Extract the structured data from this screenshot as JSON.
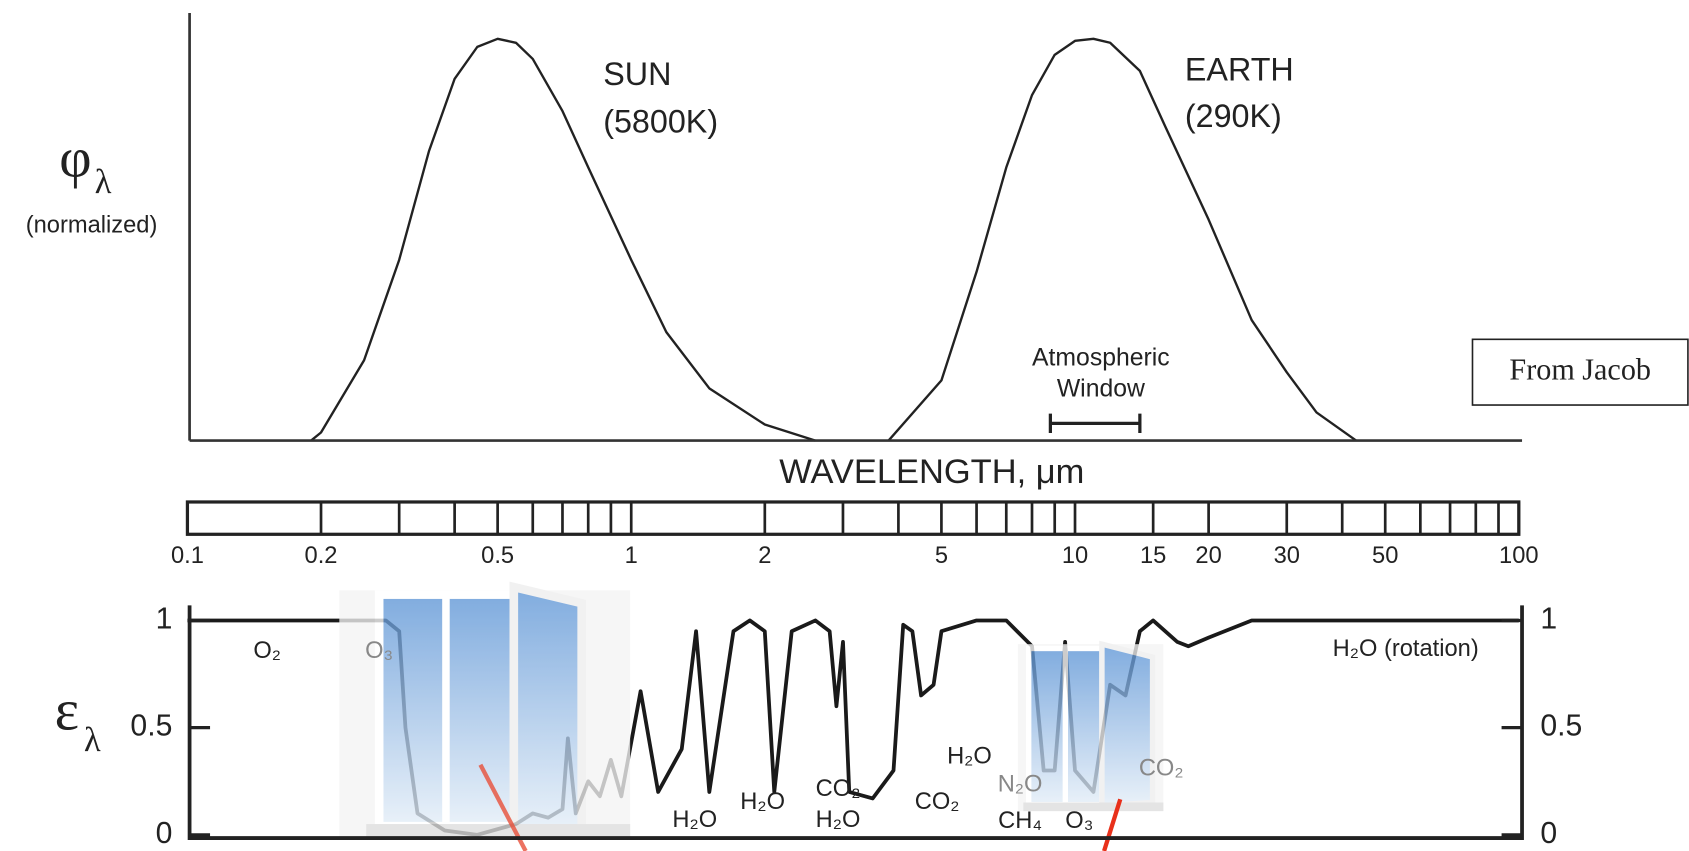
{
  "chart_data": [
    {
      "type": "line",
      "ylabel": {
        "symbol": "φ",
        "subscript": "λ"
      },
      "ylabel_note": "(normalized)",
      "xlabel": "WAVELENGTH, μm",
      "log_x": true,
      "xlim": [
        0.1,
        100
      ],
      "xticks": [
        0.1,
        0.2,
        0.5,
        1,
        2,
        5,
        10,
        15,
        20,
        30,
        50,
        100
      ],
      "xminor": [
        0.3,
        0.4,
        0.6,
        0.7,
        0.8,
        0.9,
        3,
        4,
        6,
        7,
        8,
        9,
        40,
        60,
        70,
        80,
        90
      ],
      "ylim": [
        0,
        1
      ],
      "series": [
        {
          "name": "SUN",
          "subtitle": "(5800K)",
          "color": "#222",
          "x": [
            0.19,
            0.2,
            0.25,
            0.3,
            0.35,
            0.4,
            0.45,
            0.5,
            0.55,
            0.6,
            0.7,
            0.8,
            1.0,
            1.2,
            1.5,
            2.0,
            2.6
          ],
          "values": [
            0,
            0.02,
            0.2,
            0.45,
            0.72,
            0.9,
            0.98,
            1.0,
            0.99,
            0.95,
            0.82,
            0.68,
            0.45,
            0.27,
            0.13,
            0.04,
            0
          ]
        },
        {
          "name": "EARTH",
          "subtitle": "(290K)",
          "color": "#222",
          "x": [
            3.8,
            5,
            6,
            7,
            8,
            9,
            10,
            11,
            12,
            14,
            16,
            20,
            25,
            30,
            35,
            43
          ],
          "values": [
            0,
            0.15,
            0.42,
            0.68,
            0.86,
            0.96,
            0.995,
            1.0,
            0.99,
            0.92,
            0.78,
            0.55,
            0.3,
            0.17,
            0.07,
            0
          ]
        }
      ],
      "annotation": {
        "text": [
          "Atmospheric",
          "Window"
        ],
        "range": [
          8.8,
          14
        ]
      }
    },
    {
      "type": "line",
      "ylabel": {
        "symbol": "ε",
        "subscript": "λ"
      },
      "log_x": true,
      "xlim": [
        0.1,
        100
      ],
      "ylim": [
        0,
        1
      ],
      "yticks": [
        0,
        0.5,
        1
      ],
      "series": [
        {
          "color": "#1a1a1a",
          "x": [
            0.1,
            0.2,
            0.28,
            0.3,
            0.31,
            0.33,
            0.38,
            0.45,
            0.55,
            0.6,
            0.65,
            0.7,
            0.72,
            0.75,
            0.8,
            0.85,
            0.9,
            0.95,
            1.05,
            1.15,
            1.3,
            1.4,
            1.5,
            1.7,
            1.85,
            2.0,
            2.1,
            2.3,
            2.6,
            2.8,
            2.9,
            3.0,
            3.1,
            3.5,
            3.9,
            4.1,
            4.3,
            4.5,
            4.8,
            5.0,
            6,
            7,
            8,
            8.5,
            9.0,
            9.5,
            10,
            11,
            12,
            13,
            14,
            15,
            17,
            18,
            20,
            25,
            100
          ],
          "values": [
            1,
            1,
            1,
            0.95,
            0.5,
            0.1,
            0.02,
            0,
            0.05,
            0.1,
            0.08,
            0.12,
            0.45,
            0.1,
            0.25,
            0.18,
            0.35,
            0.18,
            0.67,
            0.2,
            0.4,
            0.95,
            0.2,
            0.95,
            1.0,
            0.95,
            0.2,
            0.95,
            1.0,
            0.95,
            0.6,
            0.9,
            0.2,
            0.17,
            0.3,
            0.98,
            0.95,
            0.65,
            0.7,
            0.95,
            1.0,
            1.0,
            0.88,
            0.3,
            0.3,
            0.9,
            0.3,
            0.2,
            0.7,
            0.65,
            0.95,
            1.0,
            0.9,
            0.88,
            0.92,
            1.0,
            1
          ]
        }
      ],
      "labels": [
        "O₂",
        "O₃",
        "H₂O",
        "H₂O",
        "CO₂",
        "H₂O",
        "CO₂",
        "H₂O",
        "N₂O",
        "CH₄",
        "O₃",
        "CO₂",
        "H₂O (rotation)"
      ]
    }
  ],
  "credit": "From Jacob"
}
